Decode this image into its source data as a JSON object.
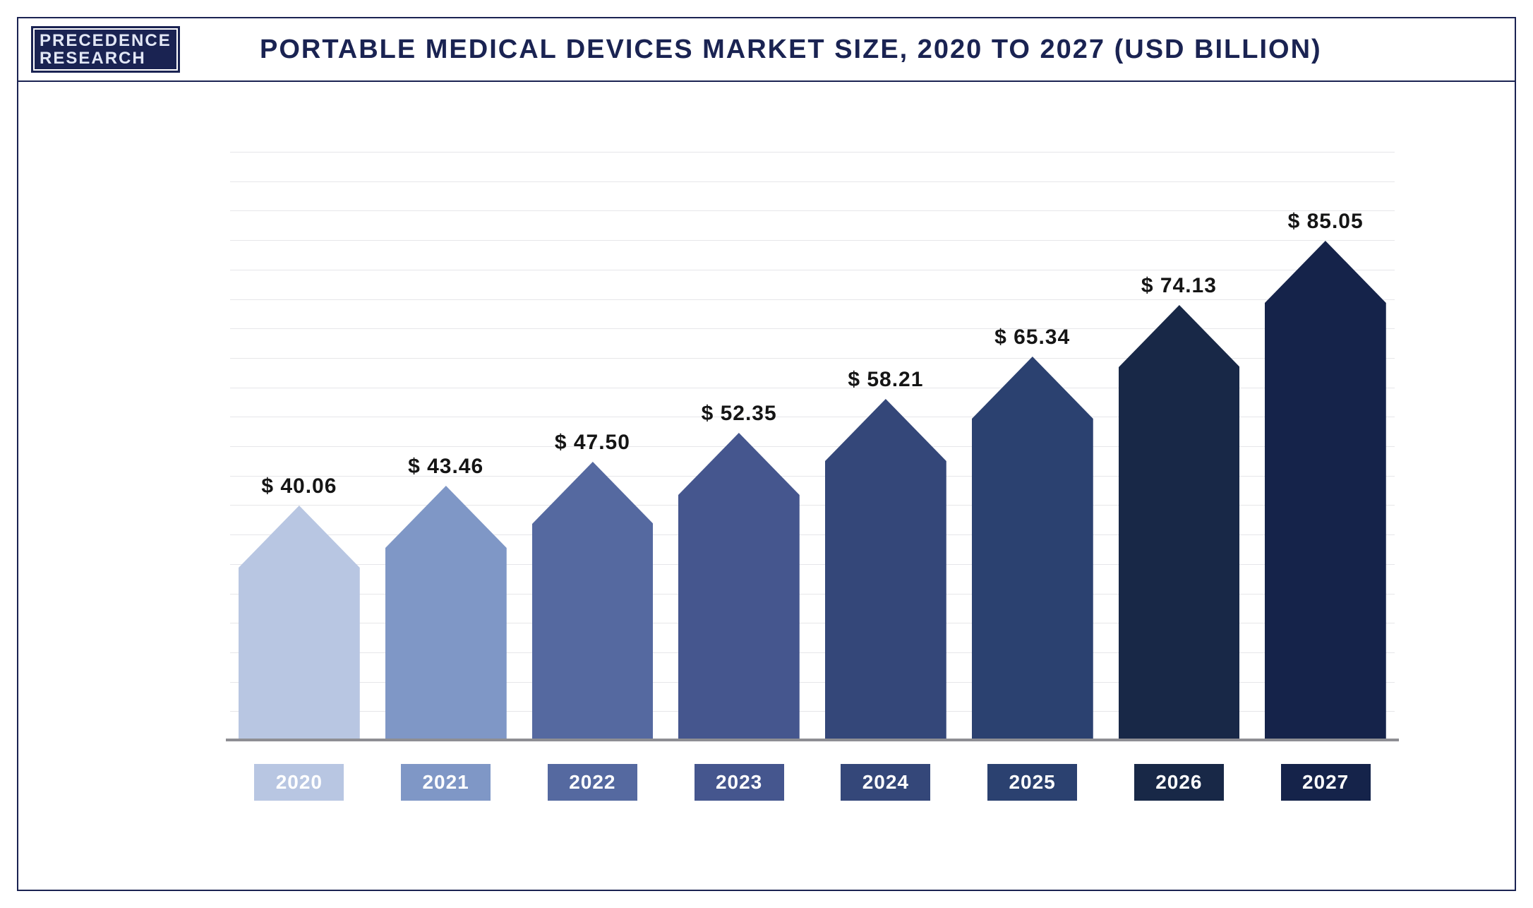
{
  "brand": {
    "line1": "PRECEDENCE",
    "line2": "RESEARCH"
  },
  "title": "PORTABLE MEDICAL DEVICES MARKET SIZE, 2020 TO 2027 (USD BILLION)",
  "chart": {
    "type": "bar",
    "categories": [
      "2020",
      "2021",
      "2022",
      "2023",
      "2024",
      "2025",
      "2026",
      "2027"
    ],
    "values": [
      40.06,
      43.46,
      47.5,
      52.35,
      58.21,
      65.34,
      74.13,
      85.05
    ],
    "value_labels": [
      "$ 40.06",
      "$ 43.46",
      "$ 47.50",
      "$ 52.35",
      "$ 58.21",
      "$ 65.34",
      "$ 74.13",
      "$ 85.05"
    ],
    "bar_colors": [
      "#b8c6e2",
      "#7f97c6",
      "#5569a0",
      "#45568e",
      "#344779",
      "#2b4170",
      "#182847",
      "#15234a"
    ],
    "x_label_bg": [
      "#b8c6e2",
      "#7f97c6",
      "#5569a0",
      "#45568e",
      "#344779",
      "#2b4170",
      "#182847",
      "#15234a"
    ],
    "ylim": [
      0,
      100
    ],
    "grid_count": 20,
    "arrow_head_ratio": 0.105,
    "background_color": "#ffffff",
    "grid_color": "#e6e6e9",
    "axis_color": "#8e8e93",
    "title_color": "#1a2352",
    "title_fontsize": 38,
    "value_fontsize": 30,
    "xlabel_fontsize": 28
  }
}
